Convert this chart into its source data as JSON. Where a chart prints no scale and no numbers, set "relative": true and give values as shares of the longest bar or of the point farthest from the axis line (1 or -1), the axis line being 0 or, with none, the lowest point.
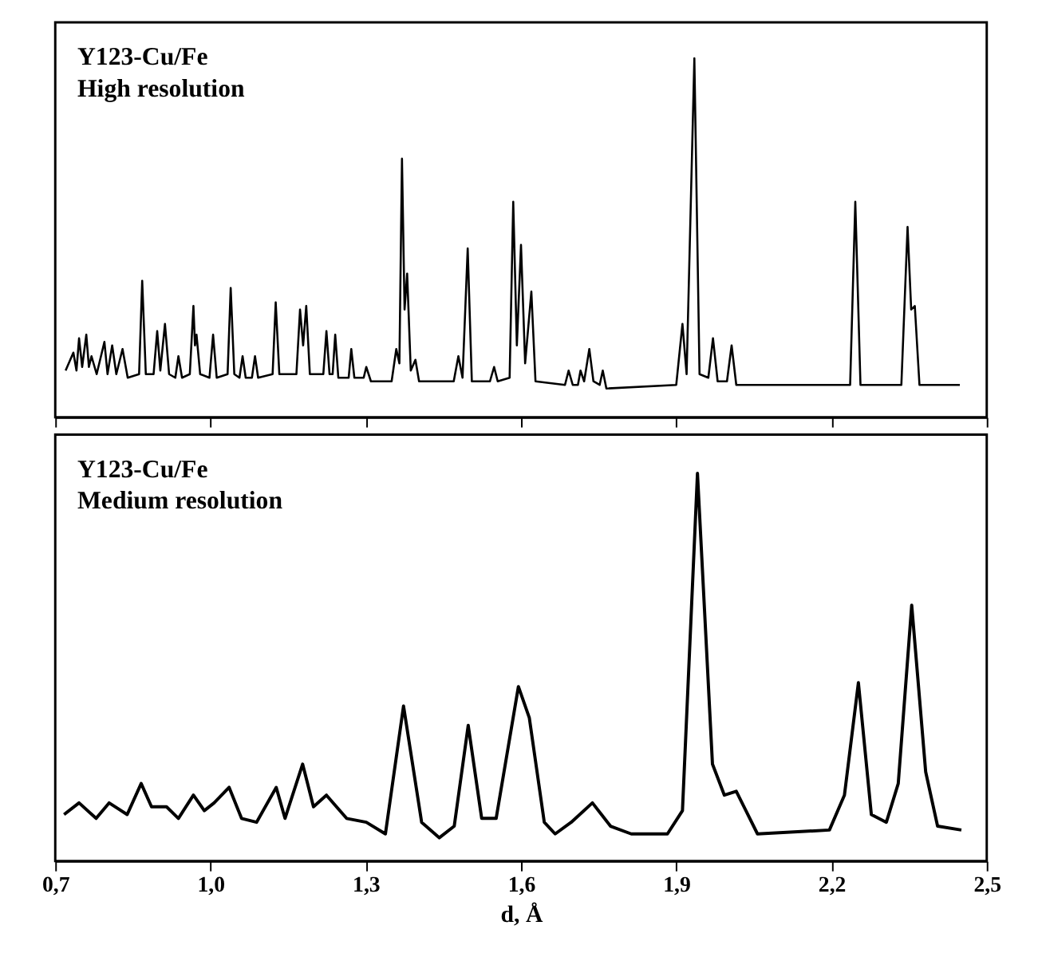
{
  "chart_data": [
    {
      "type": "line",
      "relative": true,
      "annotations": [
        "Y123-Cu/Fe",
        "High resolution"
      ],
      "xlim": [
        0.7,
        2.5
      ],
      "xticks": [
        {
          "value": 0.7,
          "label": null
        },
        {
          "value": 1.0,
          "label": null
        },
        {
          "value": 1.3,
          "label": null
        },
        {
          "value": 1.6,
          "label": null
        },
        {
          "value": 1.9,
          "label": null
        },
        {
          "value": 2.2,
          "label": null
        },
        {
          "value": 2.5,
          "label": null
        }
      ],
      "tick_labels": false,
      "grid": false,
      "marker": "none",
      "line_style": "solid",
      "series": [
        {
          "color": "#000000",
          "x": [
            0.72,
            0.735,
            0.741,
            0.746,
            0.752,
            0.76,
            0.765,
            0.77,
            0.78,
            0.795,
            0.801,
            0.81,
            0.818,
            0.83,
            0.84,
            0.862,
            0.868,
            0.875,
            0.89,
            0.897,
            0.903,
            0.912,
            0.92,
            0.932,
            0.938,
            0.945,
            0.96,
            0.967,
            0.97,
            0.973,
            0.98,
            0.998,
            1.005,
            1.012,
            1.033,
            1.039,
            1.046,
            1.056,
            1.062,
            1.068,
            1.08,
            1.086,
            1.092,
            1.12,
            1.126,
            1.133,
            1.166,
            1.173,
            1.179,
            1.185,
            1.192,
            1.218,
            1.224,
            1.23,
            1.236,
            1.241,
            1.247,
            1.267,
            1.272,
            1.278,
            1.296,
            1.301,
            1.31,
            1.35,
            1.359,
            1.365,
            1.37,
            1.375,
            1.38,
            1.387,
            1.396,
            1.403,
            1.47,
            1.479,
            1.487,
            1.497,
            1.505,
            1.54,
            1.548,
            1.555,
            1.578,
            1.585,
            1.592,
            1.6,
            1.608,
            1.62,
            1.628,
            1.685,
            1.692,
            1.7,
            1.71,
            1.715,
            1.722,
            1.732,
            1.74,
            1.752,
            1.758,
            1.765,
            1.9,
            1.912,
            1.92,
            1.935,
            1.945,
            1.962,
            1.971,
            1.98,
            1.998,
            2.007,
            2.016,
            2.236,
            2.246,
            2.256,
            2.335,
            2.347,
            2.354,
            2.361,
            2.37,
            2.448
          ],
          "values": [
            0.13,
            0.18,
            0.13,
            0.22,
            0.14,
            0.23,
            0.14,
            0.17,
            0.12,
            0.21,
            0.12,
            0.2,
            0.12,
            0.19,
            0.11,
            0.12,
            0.38,
            0.12,
            0.12,
            0.24,
            0.13,
            0.26,
            0.12,
            0.11,
            0.17,
            0.11,
            0.12,
            0.31,
            0.2,
            0.23,
            0.12,
            0.11,
            0.23,
            0.11,
            0.12,
            0.36,
            0.12,
            0.11,
            0.17,
            0.11,
            0.11,
            0.17,
            0.11,
            0.12,
            0.32,
            0.12,
            0.12,
            0.3,
            0.2,
            0.31,
            0.12,
            0.12,
            0.24,
            0.12,
            0.12,
            0.23,
            0.11,
            0.11,
            0.19,
            0.11,
            0.11,
            0.14,
            0.1,
            0.1,
            0.19,
            0.15,
            0.72,
            0.3,
            0.4,
            0.13,
            0.16,
            0.1,
            0.1,
            0.17,
            0.11,
            0.47,
            0.1,
            0.1,
            0.14,
            0.1,
            0.11,
            0.6,
            0.2,
            0.48,
            0.15,
            0.35,
            0.1,
            0.09,
            0.13,
            0.09,
            0.09,
            0.13,
            0.1,
            0.19,
            0.1,
            0.09,
            0.13,
            0.08,
            0.09,
            0.26,
            0.12,
            1.0,
            0.12,
            0.11,
            0.22,
            0.1,
            0.1,
            0.2,
            0.09,
            0.09,
            0.6,
            0.09,
            0.09,
            0.53,
            0.3,
            0.31,
            0.09,
            0.09
          ]
        }
      ]
    },
    {
      "type": "line",
      "relative": true,
      "annotations": [
        "Y123-Cu/Fe",
        "Medium resolution"
      ],
      "xlabel": "d, Å",
      "xlim": [
        0.7,
        2.5
      ],
      "xticks": [
        {
          "value": 0.7,
          "label": "0,7"
        },
        {
          "value": 1.0,
          "label": "1,0"
        },
        {
          "value": 1.3,
          "label": "1,3"
        },
        {
          "value": 1.6,
          "label": "1,6"
        },
        {
          "value": 1.9,
          "label": "1,9"
        },
        {
          "value": 2.2,
          "label": "2,2"
        },
        {
          "value": 2.5,
          "label": "2,5"
        }
      ],
      "tick_labels": "x",
      "grid": false,
      "marker": "none",
      "line_style": "solid",
      "series": [
        {
          "color": "#000000",
          "x": [
            0.717,
            0.746,
            0.779,
            0.804,
            0.839,
            0.866,
            0.886,
            0.915,
            0.938,
            0.967,
            0.988,
            1.007,
            1.036,
            1.06,
            1.089,
            1.127,
            1.144,
            1.178,
            1.199,
            1.224,
            1.263,
            1.301,
            1.338,
            1.373,
            1.408,
            1.442,
            1.471,
            1.498,
            1.524,
            1.552,
            1.595,
            1.616,
            1.645,
            1.666,
            1.697,
            1.738,
            1.773,
            1.813,
            1.883,
            1.912,
            1.941,
            1.97,
            1.993,
            2.016,
            2.057,
            2.196,
            2.225,
            2.252,
            2.277,
            2.306,
            2.329,
            2.355,
            2.382,
            2.405,
            2.451
          ],
          "values": [
            0.12,
            0.15,
            0.11,
            0.15,
            0.12,
            0.2,
            0.14,
            0.14,
            0.11,
            0.17,
            0.13,
            0.15,
            0.19,
            0.11,
            0.1,
            0.19,
            0.11,
            0.25,
            0.14,
            0.17,
            0.11,
            0.1,
            0.07,
            0.4,
            0.1,
            0.06,
            0.09,
            0.35,
            0.11,
            0.11,
            0.45,
            0.37,
            0.1,
            0.07,
            0.1,
            0.15,
            0.09,
            0.07,
            0.07,
            0.13,
            1.0,
            0.25,
            0.17,
            0.18,
            0.07,
            0.08,
            0.17,
            0.46,
            0.12,
            0.1,
            0.2,
            0.66,
            0.23,
            0.09,
            0.08
          ]
        }
      ]
    }
  ]
}
